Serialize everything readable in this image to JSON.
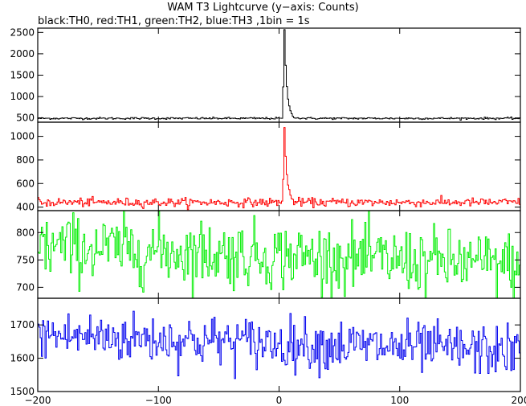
{
  "title": "WAM T3 Lightcurve (y−axis: Counts)",
  "subtitle": "black:TH0, red:TH1, green:TH2, blue:TH3 ,1bin = 1s",
  "chart_data": {
    "type": "line",
    "x_range": [
      -200,
      200
    ],
    "x_ticks": [
      -200,
      -100,
      0,
      100,
      200
    ],
    "x_tick_labels": [
      "−200",
      "−100",
      "0",
      "100",
      "200"
    ],
    "bin_seconds": 1,
    "panels": [
      {
        "name": "TH0",
        "color": "#000000",
        "ylim": [
          400,
          2600
        ],
        "y_ticks": [
          500,
          1000,
          1500,
          2000,
          2500
        ],
        "baseline": 490,
        "noise": 12,
        "burst": {
          "peak_x": 4,
          "peak_value": 2550,
          "decay_s": 2
        }
      },
      {
        "name": "TH1",
        "color": "#ff0000",
        "ylim": [
          370,
          1120
        ],
        "y_ticks": [
          400,
          600,
          800,
          1000
        ],
        "baseline": 440,
        "noise": 18,
        "burst": {
          "peak_x": 4,
          "peak_value": 1080,
          "decay_s": 2
        }
      },
      {
        "name": "TH2",
        "color": "#00ee00",
        "ylim": [
          680,
          840
        ],
        "y_ticks": [
          700,
          750,
          800
        ],
        "baseline_start": 775,
        "baseline_end": 740,
        "noise": 30
      },
      {
        "name": "TH3",
        "color": "#0000ee",
        "ylim": [
          1500,
          1780
        ],
        "y_ticks": [
          1500,
          1600,
          1700
        ],
        "baseline_start": 1670,
        "baseline_end": 1620,
        "noise": 38
      }
    ]
  }
}
